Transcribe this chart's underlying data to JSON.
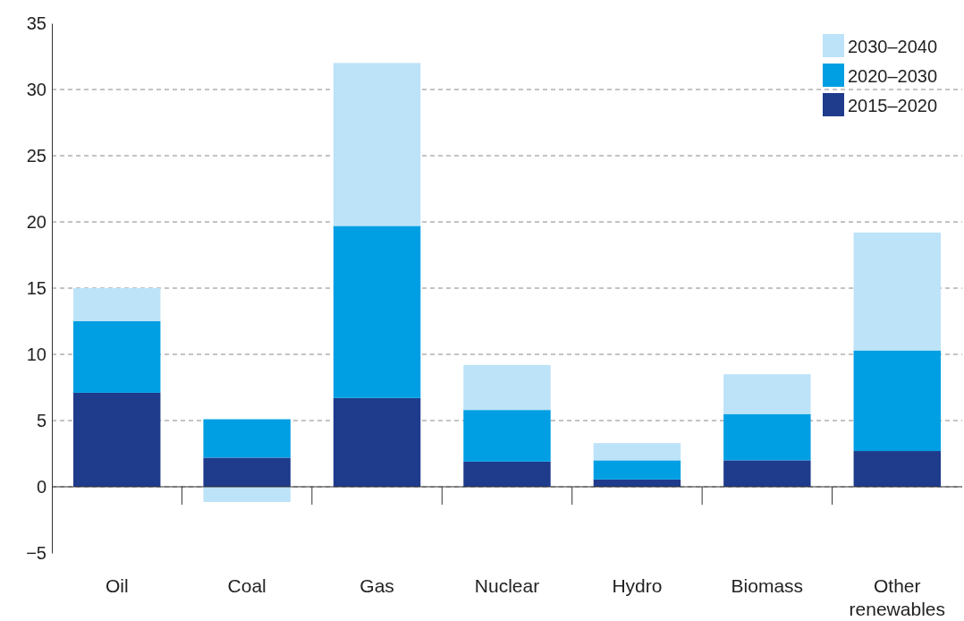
{
  "chart_data": {
    "type": "bar",
    "stacked": true,
    "categories": [
      "Oil",
      "Coal",
      "Gas",
      "Nuclear",
      "Hydro",
      "Biomass",
      "Other renewables"
    ],
    "series": [
      {
        "name": "2015–2020",
        "color": "#1f3b8c",
        "values": [
          7.1,
          2.2,
          6.7,
          1.9,
          0.55,
          2.0,
          2.7
        ]
      },
      {
        "name": "2020–2030",
        "color": "#009fe3",
        "values": [
          5.4,
          2.9,
          13.0,
          3.9,
          1.45,
          3.5,
          7.6
        ]
      },
      {
        "name": "2030–2040",
        "color": "#bde3f8",
        "values": [
          2.5,
          -1.15,
          12.3,
          3.4,
          1.3,
          3.0,
          8.9
        ]
      }
    ],
    "ylim": [
      -5,
      35
    ],
    "yticks": [
      -5,
      0,
      5,
      10,
      15,
      20,
      25,
      30,
      35
    ],
    "grid": "y",
    "legend": "top right"
  }
}
